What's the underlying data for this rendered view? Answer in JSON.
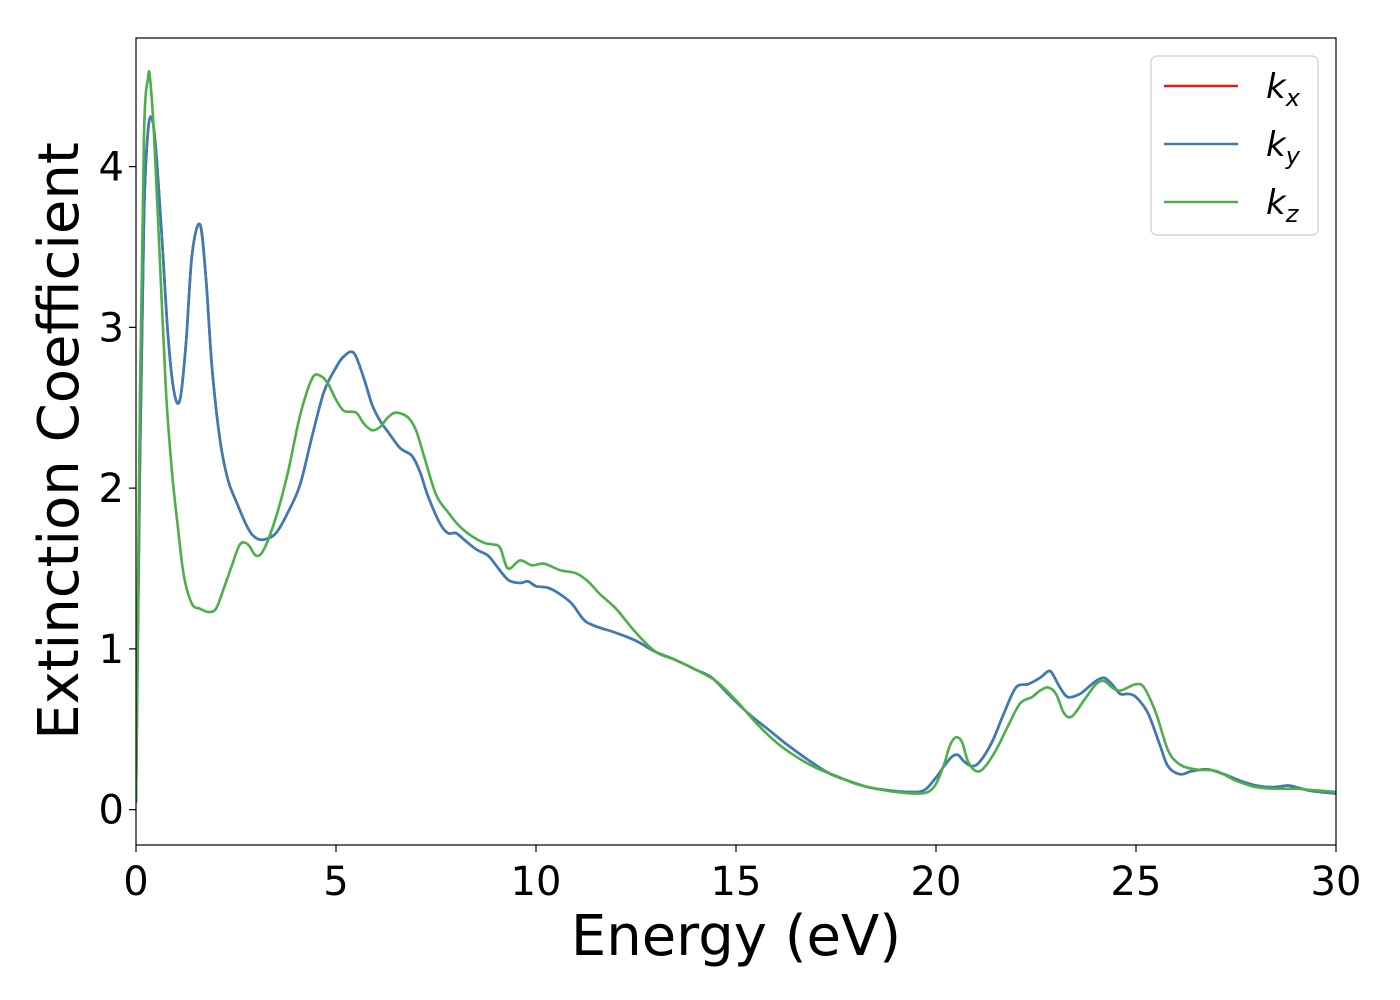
{
  "chart_data": {
    "type": "line",
    "xlabel": "Energy (eV)",
    "ylabel": "Extinction Coefficient",
    "xlim": [
      0,
      30
    ],
    "ylim": [
      -0.22,
      4.8
    ],
    "xticks": [
      0,
      5,
      10,
      15,
      20,
      25,
      30
    ],
    "yticks": [
      0,
      1,
      2,
      3,
      4
    ],
    "grid": false,
    "legend_position": "top-right",
    "series": [
      {
        "name": "k_x",
        "color": "#e41a1c",
        "x": [
          0,
          0.1,
          0.2,
          0.3,
          0.4,
          0.5,
          0.65,
          0.8,
          0.95,
          1.1,
          1.25,
          1.4,
          1.6,
          1.75,
          1.9,
          2.1,
          2.3,
          2.5,
          2.8,
          3.0,
          3.2,
          3.5,
          3.8,
          4.1,
          4.4,
          4.7,
          5.0,
          5.2,
          5.45,
          5.7,
          5.9,
          6.1,
          6.3,
          6.6,
          6.9,
          7.1,
          7.3,
          7.6,
          7.8,
          8.0,
          8.2,
          8.5,
          8.8,
          9.0,
          9.3,
          9.6,
          9.8,
          10.0,
          10.3,
          10.6,
          10.9,
          11.2,
          11.5,
          12.0,
          12.5,
          13.0,
          13.5,
          14.0,
          14.4,
          14.8,
          15.3,
          15.8,
          16.3,
          16.8,
          17.3,
          17.8,
          18.3,
          18.8,
          19.3,
          19.7,
          20.0,
          20.2,
          20.4,
          20.55,
          20.7,
          20.9,
          21.1,
          21.4,
          21.7,
          22.0,
          22.3,
          22.6,
          22.8,
          22.9,
          23.1,
          23.3,
          23.6,
          23.8,
          24.0,
          24.2,
          24.4,
          24.6,
          24.8,
          25.0,
          25.3,
          25.6,
          25.8,
          26.1,
          26.4,
          26.8,
          27.2,
          27.6,
          28.0,
          28.4,
          28.8,
          29.0,
          29.3,
          29.6,
          30.0
        ],
        "values": [
          0.05,
          2.2,
          3.7,
          4.22,
          4.3,
          4.1,
          3.55,
          2.95,
          2.6,
          2.55,
          2.9,
          3.45,
          3.64,
          3.3,
          2.75,
          2.3,
          2.05,
          1.92,
          1.75,
          1.69,
          1.68,
          1.72,
          1.85,
          2.02,
          2.32,
          2.6,
          2.75,
          2.82,
          2.84,
          2.68,
          2.52,
          2.42,
          2.35,
          2.25,
          2.2,
          2.1,
          1.95,
          1.78,
          1.72,
          1.72,
          1.68,
          1.62,
          1.58,
          1.52,
          1.43,
          1.41,
          1.42,
          1.39,
          1.38,
          1.34,
          1.28,
          1.18,
          1.14,
          1.1,
          1.05,
          0.98,
          0.93,
          0.87,
          0.82,
          0.72,
          0.6,
          0.5,
          0.4,
          0.31,
          0.23,
          0.18,
          0.14,
          0.12,
          0.11,
          0.12,
          0.2,
          0.27,
          0.33,
          0.34,
          0.3,
          0.27,
          0.3,
          0.42,
          0.6,
          0.76,
          0.78,
          0.82,
          0.86,
          0.85,
          0.76,
          0.7,
          0.72,
          0.76,
          0.8,
          0.82,
          0.78,
          0.72,
          0.72,
          0.7,
          0.6,
          0.4,
          0.27,
          0.22,
          0.24,
          0.25,
          0.22,
          0.18,
          0.15,
          0.14,
          0.15,
          0.14,
          0.12,
          0.11,
          0.1
        ]
      },
      {
        "name": "k_y",
        "color": "#377eb8",
        "x": [
          0,
          0.1,
          0.2,
          0.3,
          0.4,
          0.5,
          0.65,
          0.8,
          0.95,
          1.1,
          1.25,
          1.4,
          1.6,
          1.75,
          1.9,
          2.1,
          2.3,
          2.5,
          2.8,
          3.0,
          3.2,
          3.5,
          3.8,
          4.1,
          4.4,
          4.7,
          5.0,
          5.2,
          5.45,
          5.7,
          5.9,
          6.1,
          6.3,
          6.6,
          6.9,
          7.1,
          7.3,
          7.6,
          7.8,
          8.0,
          8.2,
          8.5,
          8.8,
          9.0,
          9.3,
          9.6,
          9.8,
          10.0,
          10.3,
          10.6,
          10.9,
          11.2,
          11.5,
          12.0,
          12.5,
          13.0,
          13.5,
          14.0,
          14.4,
          14.8,
          15.3,
          15.8,
          16.3,
          16.8,
          17.3,
          17.8,
          18.3,
          18.8,
          19.3,
          19.7,
          20.0,
          20.2,
          20.4,
          20.55,
          20.7,
          20.9,
          21.1,
          21.4,
          21.7,
          22.0,
          22.3,
          22.6,
          22.8,
          22.9,
          23.1,
          23.3,
          23.6,
          23.8,
          24.0,
          24.2,
          24.4,
          24.6,
          24.8,
          25.0,
          25.3,
          25.6,
          25.8,
          26.1,
          26.4,
          26.8,
          27.2,
          27.6,
          28.0,
          28.4,
          28.8,
          29.0,
          29.3,
          29.6,
          30.0
        ],
        "values": [
          0.05,
          2.2,
          3.7,
          4.22,
          4.3,
          4.1,
          3.55,
          2.95,
          2.6,
          2.55,
          2.9,
          3.45,
          3.64,
          3.3,
          2.75,
          2.3,
          2.05,
          1.92,
          1.75,
          1.69,
          1.68,
          1.72,
          1.85,
          2.02,
          2.32,
          2.6,
          2.75,
          2.82,
          2.84,
          2.68,
          2.52,
          2.42,
          2.35,
          2.25,
          2.2,
          2.1,
          1.95,
          1.78,
          1.72,
          1.72,
          1.68,
          1.62,
          1.58,
          1.52,
          1.43,
          1.41,
          1.42,
          1.39,
          1.38,
          1.34,
          1.28,
          1.18,
          1.14,
          1.1,
          1.05,
          0.98,
          0.93,
          0.87,
          0.82,
          0.72,
          0.6,
          0.5,
          0.4,
          0.31,
          0.23,
          0.18,
          0.14,
          0.12,
          0.11,
          0.12,
          0.2,
          0.27,
          0.33,
          0.34,
          0.3,
          0.27,
          0.3,
          0.42,
          0.6,
          0.76,
          0.78,
          0.82,
          0.86,
          0.85,
          0.76,
          0.7,
          0.72,
          0.76,
          0.8,
          0.82,
          0.78,
          0.72,
          0.72,
          0.7,
          0.6,
          0.4,
          0.27,
          0.22,
          0.24,
          0.25,
          0.22,
          0.18,
          0.15,
          0.14,
          0.15,
          0.14,
          0.12,
          0.11,
          0.1
        ]
      },
      {
        "name": "k_z",
        "color": "#4daf4a",
        "x": [
          0,
          0.1,
          0.2,
          0.3,
          0.35,
          0.45,
          0.6,
          0.75,
          0.9,
          1.05,
          1.2,
          1.4,
          1.6,
          1.8,
          2.0,
          2.2,
          2.4,
          2.6,
          2.8,
          3.0,
          3.2,
          3.5,
          3.8,
          4.1,
          4.4,
          4.6,
          4.8,
          5.0,
          5.2,
          5.5,
          5.7,
          5.9,
          6.1,
          6.3,
          6.5,
          6.8,
          7.0,
          7.2,
          7.5,
          7.8,
          8.1,
          8.4,
          8.7,
          8.9,
          9.1,
          9.3,
          9.6,
          9.9,
          10.2,
          10.6,
          11.0,
          11.3,
          11.6,
          12.0,
          12.5,
          13.0,
          13.5,
          14.0,
          14.5,
          15.0,
          15.5,
          16.0,
          16.5,
          17.0,
          17.5,
          18.0,
          18.5,
          19.0,
          19.5,
          19.8,
          20.0,
          20.2,
          20.35,
          20.5,
          20.65,
          20.8,
          21.0,
          21.2,
          21.5,
          21.8,
          22.1,
          22.4,
          22.6,
          22.8,
          23.0,
          23.2,
          23.4,
          23.7,
          24.0,
          24.2,
          24.4,
          24.6,
          24.8,
          25.0,
          25.2,
          25.5,
          25.8,
          26.1,
          26.5,
          27.0,
          27.5,
          28.0,
          28.5,
          29.0,
          29.5,
          30.0
        ],
        "values": [
          0.05,
          2.6,
          4.2,
          4.55,
          4.55,
          4.2,
          3.4,
          2.6,
          2.1,
          1.75,
          1.45,
          1.28,
          1.25,
          1.23,
          1.25,
          1.38,
          1.52,
          1.65,
          1.65,
          1.58,
          1.62,
          1.82,
          2.1,
          2.45,
          2.68,
          2.7,
          2.65,
          2.55,
          2.48,
          2.47,
          2.4,
          2.36,
          2.38,
          2.44,
          2.47,
          2.44,
          2.36,
          2.2,
          1.96,
          1.85,
          1.76,
          1.7,
          1.66,
          1.65,
          1.63,
          1.5,
          1.55,
          1.52,
          1.53,
          1.49,
          1.47,
          1.42,
          1.34,
          1.25,
          1.1,
          0.98,
          0.93,
          0.87,
          0.8,
          0.68,
          0.54,
          0.42,
          0.33,
          0.26,
          0.21,
          0.16,
          0.13,
          0.11,
          0.1,
          0.11,
          0.16,
          0.28,
          0.4,
          0.45,
          0.42,
          0.3,
          0.24,
          0.26,
          0.37,
          0.52,
          0.66,
          0.7,
          0.74,
          0.76,
          0.72,
          0.6,
          0.58,
          0.68,
          0.78,
          0.8,
          0.76,
          0.74,
          0.76,
          0.78,
          0.76,
          0.6,
          0.37,
          0.28,
          0.25,
          0.24,
          0.18,
          0.14,
          0.13,
          0.13,
          0.12,
          0.11
        ]
      }
    ]
  }
}
